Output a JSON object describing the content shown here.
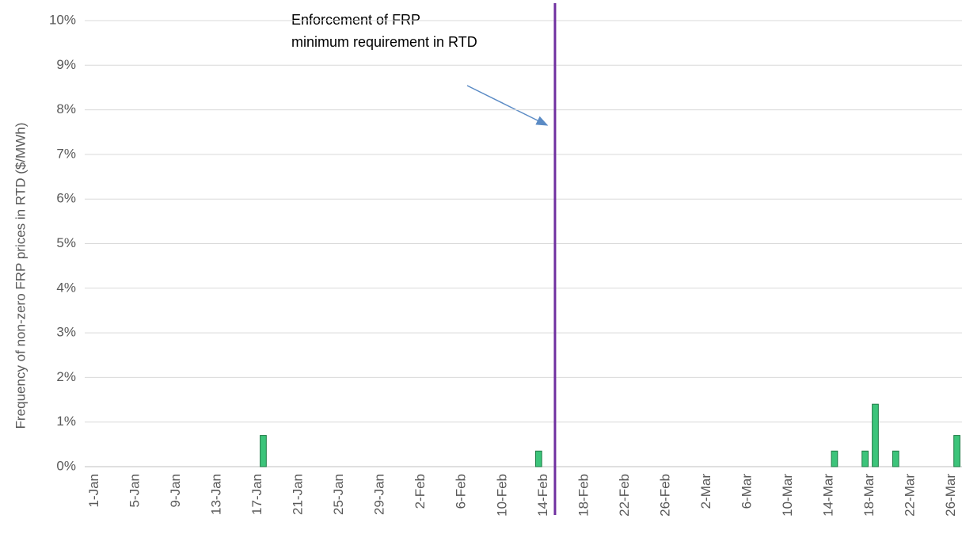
{
  "chart_data": {
    "type": "bar",
    "y_axis_label": "Frequency of non-zero FRP prices in RTD ($/MWh)",
    "categories": [
      "1-Jan",
      null,
      null,
      null,
      "5-Jan",
      null,
      null,
      null,
      "9-Jan",
      null,
      null,
      null,
      "13-Jan",
      null,
      null,
      null,
      "17-Jan",
      null,
      null,
      null,
      "21-Jan",
      null,
      null,
      null,
      "25-Jan",
      null,
      null,
      null,
      "29-Jan",
      null,
      null,
      null,
      "2-Feb",
      null,
      null,
      null,
      "6-Feb",
      null,
      null,
      null,
      "10-Feb",
      null,
      null,
      null,
      "14-Feb",
      null,
      null,
      null,
      "18-Feb",
      null,
      null,
      null,
      "22-Feb",
      null,
      null,
      null,
      "26-Feb",
      null,
      null,
      null,
      "2-Mar",
      null,
      null,
      null,
      "6-Mar",
      null,
      null,
      null,
      "10-Mar",
      null,
      null,
      null,
      "14-Mar",
      null,
      null,
      null,
      "18-Mar",
      null,
      null,
      null,
      "22-Mar",
      null,
      null,
      null,
      "26-Mar",
      null
    ],
    "values": [
      0,
      0,
      0,
      0,
      0,
      0,
      0,
      0,
      0,
      0,
      0,
      0,
      0,
      0,
      0,
      0,
      0,
      0.7,
      0,
      0,
      0,
      0,
      0,
      0,
      0,
      0,
      0,
      0,
      0,
      0,
      0,
      0,
      0,
      0,
      0,
      0,
      0,
      0,
      0,
      0,
      0,
      0,
      0,
      0,
      0.35,
      0,
      0,
      0,
      0,
      0,
      0,
      0,
      0,
      0,
      0,
      0,
      0,
      0,
      0,
      0,
      0,
      0,
      0,
      0,
      0,
      0,
      0,
      0,
      0,
      0,
      0,
      0,
      0,
      0.35,
      0,
      0,
      0.35,
      1.4,
      0,
      0.35,
      0,
      0,
      0,
      0,
      0,
      0.7
    ],
    "color": "#3cc47a",
    "ylim": [
      0,
      10
    ],
    "yticks": [
      {
        "value": 0,
        "label": "0%"
      },
      {
        "value": 1,
        "label": "1%"
      },
      {
        "value": 2,
        "label": "2%"
      },
      {
        "value": 3,
        "label": "3%"
      },
      {
        "value": 4,
        "label": "4%"
      },
      {
        "value": 5,
        "label": "5%"
      },
      {
        "value": 6,
        "label": "6%"
      },
      {
        "value": 7,
        "label": "7%"
      },
      {
        "value": 8,
        "label": "8%"
      },
      {
        "value": 9,
        "label": "9%"
      },
      {
        "value": 10,
        "label": "10%"
      }
    ],
    "grid": true,
    "annotation": {
      "lines": [
        "Enforcement of FRP",
        "minimum requirement in RTD"
      ],
      "color": "#7030a0"
    }
  }
}
